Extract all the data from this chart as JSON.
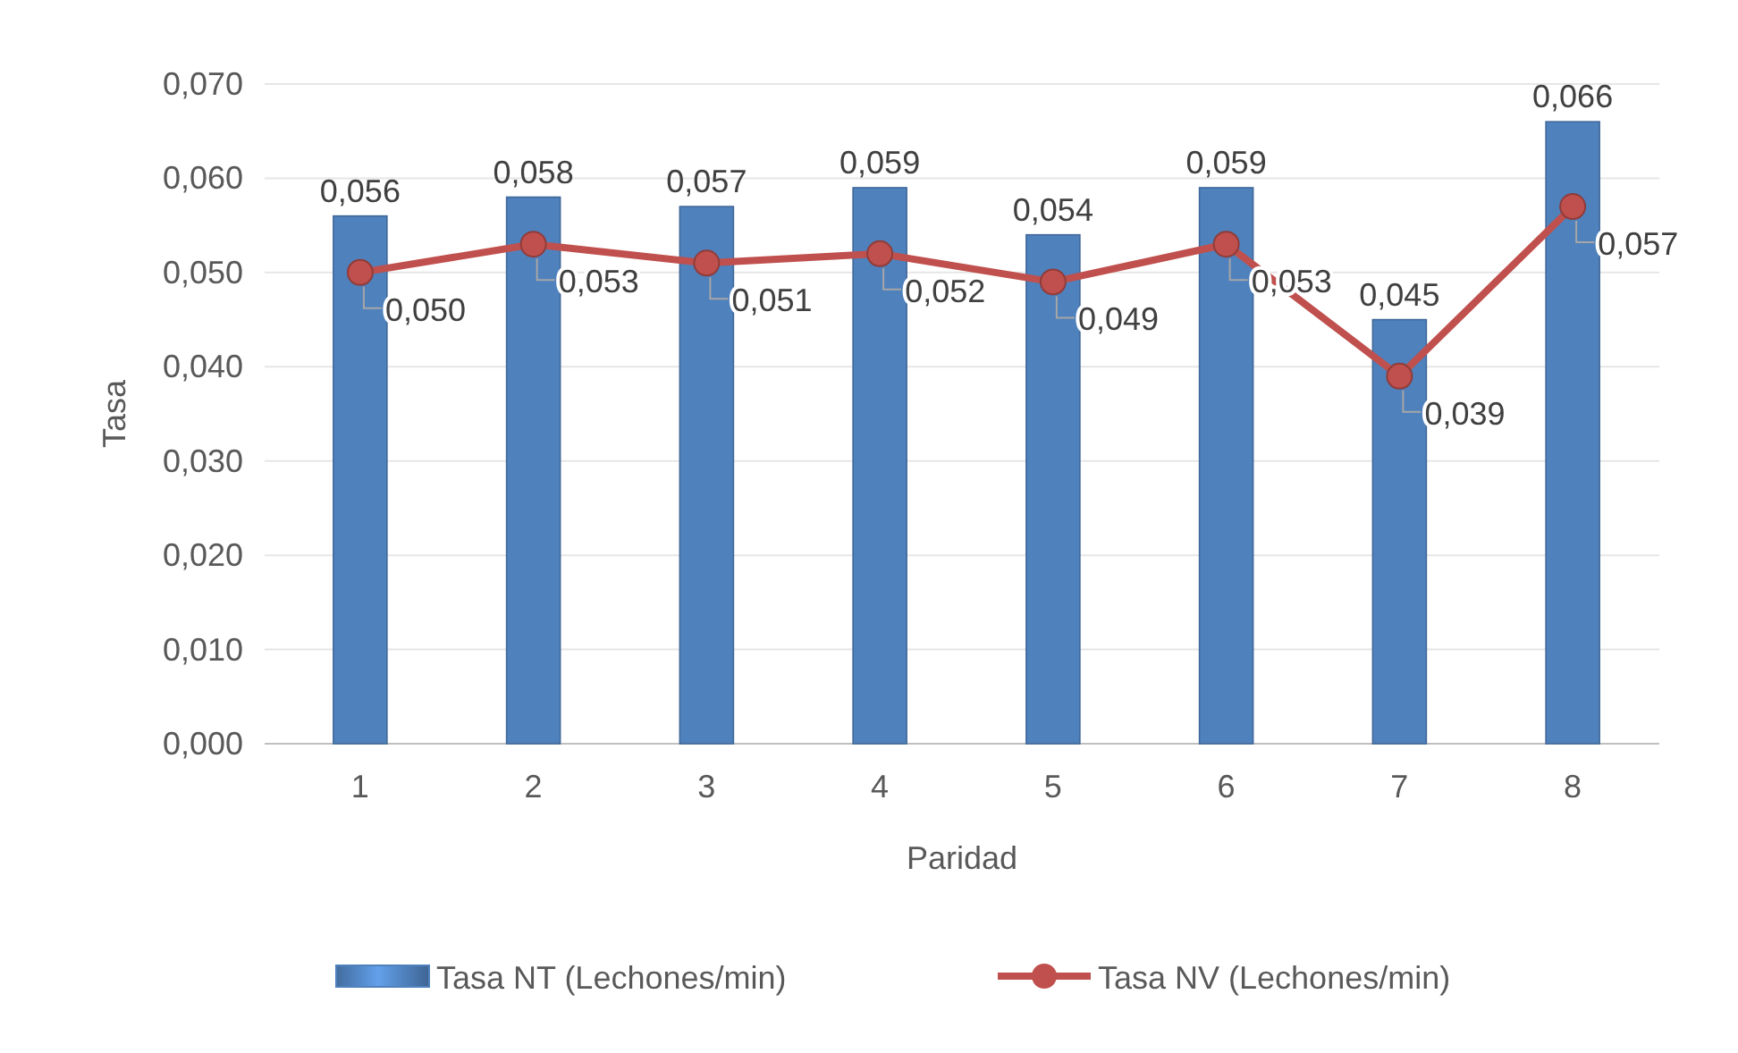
{
  "chart_data": {
    "type": "bar",
    "xlabel": "Paridad",
    "ylabel": "Tasa",
    "categories": [
      "1",
      "2",
      "3",
      "4",
      "5",
      "6",
      "7",
      "8"
    ],
    "series": [
      {
        "name": "Tasa NT (Lechones/min)",
        "color": "#4f81bd",
        "values": [
          0.056,
          0.058,
          0.057,
          0.059,
          0.054,
          0.059,
          0.045,
          0.066
        ],
        "value_labels": [
          "0,056",
          "0,058",
          "0,057",
          "0,059",
          "0,054",
          "0,059",
          "0,045",
          "0,066"
        ]
      },
      {
        "name": "Tasa NV (Lechones/min)",
        "type": "line",
        "color": "#c0504d",
        "marker": "circle",
        "values": [
          0.05,
          0.053,
          0.051,
          0.052,
          0.049,
          0.053,
          0.039,
          0.057
        ],
        "value_labels": [
          "0,050",
          "0,053",
          "0,051",
          "0,052",
          "0,049",
          "0,053",
          "0,039",
          "0,057"
        ]
      }
    ],
    "ylim": [
      0,
      0.07
    ],
    "yticks": [
      {
        "value": 0,
        "label": "0,000"
      },
      {
        "value": 0.01,
        "label": "0,010"
      },
      {
        "value": 0.02,
        "label": "0,020"
      },
      {
        "value": 0.03,
        "label": "0,030"
      },
      {
        "value": 0.04,
        "label": "0,040"
      },
      {
        "value": 0.05,
        "label": "0,050"
      },
      {
        "value": 0.06,
        "label": "0,060"
      },
      {
        "value": 0.07,
        "label": "0,070"
      }
    ],
    "grid": "y",
    "legend": "bottom"
  }
}
